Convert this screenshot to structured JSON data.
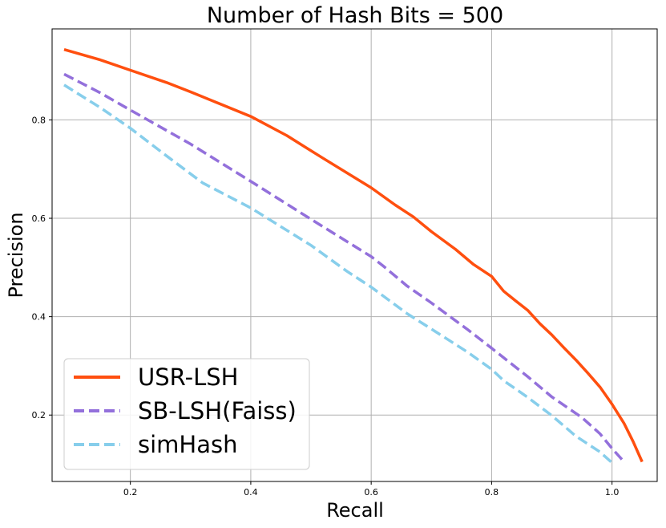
{
  "chart_data": {
    "type": "line",
    "title": "Number of Hash Bits = 500",
    "xlabel": "Recall",
    "ylabel": "Precision",
    "xlim": [
      0.07,
      1.075
    ],
    "ylim": [
      0.065,
      0.985
    ],
    "xticks": [
      0.2,
      0.4,
      0.6,
      0.8,
      1.0
    ],
    "xtick_labels": [
      "0.2",
      "0.4",
      "0.6",
      "0.8",
      "1.0"
    ],
    "yticks": [
      0.2,
      0.4,
      0.6,
      0.8
    ],
    "ytick_labels": [
      "0.2",
      "0.4",
      "0.6",
      "0.8"
    ],
    "grid": true,
    "legend_position": "lower-left",
    "series": [
      {
        "name": "USR-LSH",
        "color": "#ff4f0f",
        "dash": "solid",
        "x": [
          0.09,
          0.15,
          0.2,
          0.26,
          0.3,
          0.34,
          0.4,
          0.46,
          0.52,
          0.6,
          0.64,
          0.67,
          0.7,
          0.74,
          0.77,
          0.8,
          0.82,
          0.84,
          0.86,
          0.88,
          0.9,
          0.92,
          0.94,
          0.96,
          0.98,
          1.0,
          1.02,
          1.035,
          1.05
        ],
        "y": [
          0.943,
          0.922,
          0.901,
          0.876,
          0.857,
          0.837,
          0.807,
          0.768,
          0.722,
          0.662,
          0.627,
          0.603,
          0.573,
          0.537,
          0.506,
          0.482,
          0.452,
          0.432,
          0.413,
          0.386,
          0.363,
          0.337,
          0.312,
          0.285,
          0.257,
          0.222,
          0.183,
          0.146,
          0.105
        ]
      },
      {
        "name": "SB-LSH(Faiss)",
        "color": "#9370db",
        "dash": "dashed",
        "x": [
          0.09,
          0.15,
          0.2,
          0.3,
          0.4,
          0.5,
          0.6,
          0.62,
          0.66,
          0.7,
          0.76,
          0.8,
          0.86,
          0.9,
          0.95,
          0.98,
          1.0,
          1.02
        ],
        "y": [
          0.893,
          0.855,
          0.82,
          0.751,
          0.675,
          0.598,
          0.522,
          0.503,
          0.462,
          0.428,
          0.374,
          0.336,
          0.278,
          0.237,
          0.195,
          0.162,
          0.132,
          0.105
        ]
      },
      {
        "name": "simHash",
        "color": "#87ceeb",
        "dash": "dashed",
        "x": [
          0.09,
          0.15,
          0.2,
          0.26,
          0.32,
          0.4,
          0.5,
          0.56,
          0.6,
          0.66,
          0.7,
          0.76,
          0.8,
          0.82,
          0.86,
          0.9,
          0.94,
          0.98,
          1.0
        ],
        "y": [
          0.871,
          0.825,
          0.783,
          0.727,
          0.672,
          0.621,
          0.545,
          0.492,
          0.46,
          0.406,
          0.375,
          0.328,
          0.293,
          0.27,
          0.236,
          0.199,
          0.157,
          0.125,
          0.103
        ]
      }
    ]
  }
}
